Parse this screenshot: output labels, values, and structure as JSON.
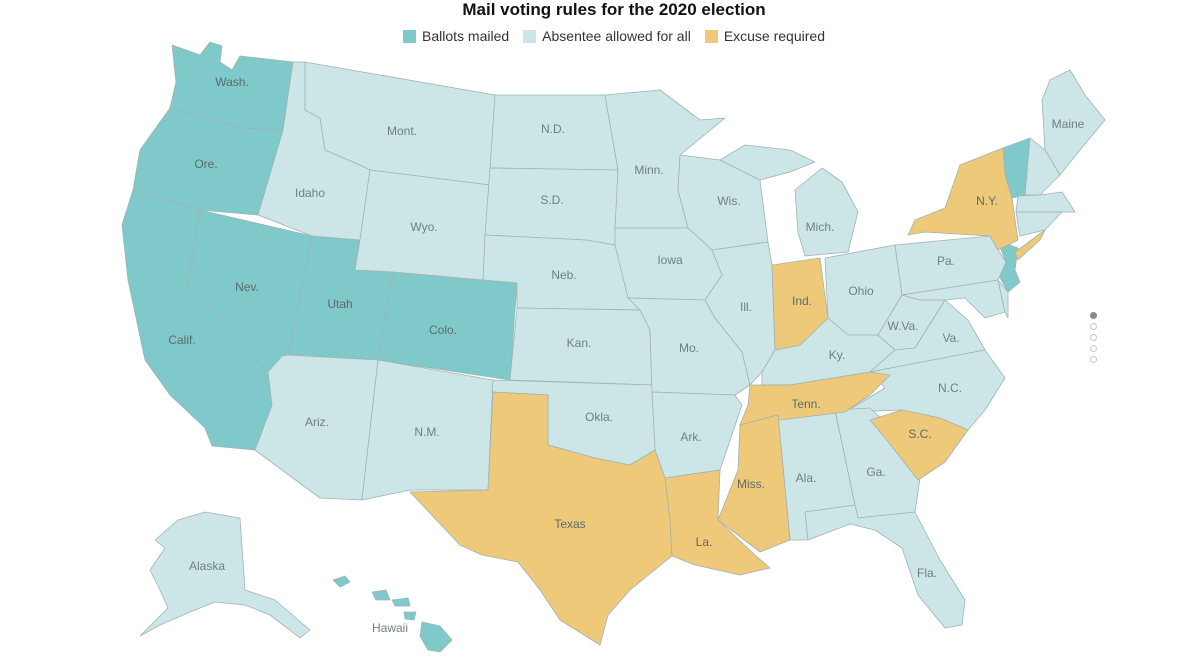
{
  "title": "Mail voting rules for the 2020 election",
  "legend": [
    {
      "label": "Ballots mailed",
      "color": "#7fc9ca"
    },
    {
      "label": "Absentee allowed for all",
      "color": "#cce6e7"
    },
    {
      "label": "Excuse required",
      "color": "#edc979"
    }
  ],
  "states": {
    "wa": "Wash.",
    "or": "Ore.",
    "ca": "Calif.",
    "nv": "Nev.",
    "ut": "Utah",
    "co": "Colo.",
    "hi": "Hawaii",
    "id": "Idaho",
    "mt": "Mont.",
    "wy": "Wyo.",
    "az": "Ariz.",
    "nm": "N.M.",
    "nd": "N.D.",
    "sd": "S.D.",
    "ne": "Neb.",
    "ks": "Kan.",
    "ok": "Okla.",
    "tx": "Texas",
    "mn": "Minn.",
    "ia": "Iowa",
    "mo": "Mo.",
    "ar": "Ark.",
    "la": "La.",
    "wi": "Wis.",
    "il": "Ill.",
    "mi": "Mich.",
    "in": "Ind.",
    "oh": "Ohio",
    "ky": "Ky.",
    "tn": "Tenn.",
    "ms": "Miss.",
    "al": "Ala.",
    "ga": "Ga.",
    "fl": "Fla.",
    "sc": "S.C.",
    "nc": "N.C.",
    "va": "Va.",
    "wv": "W.Va.",
    "pa": "Pa.",
    "ny": "N.Y.",
    "me": "Maine",
    "ak": "Alaska"
  },
  "pagination": {
    "pages": 5,
    "active": 1
  }
}
